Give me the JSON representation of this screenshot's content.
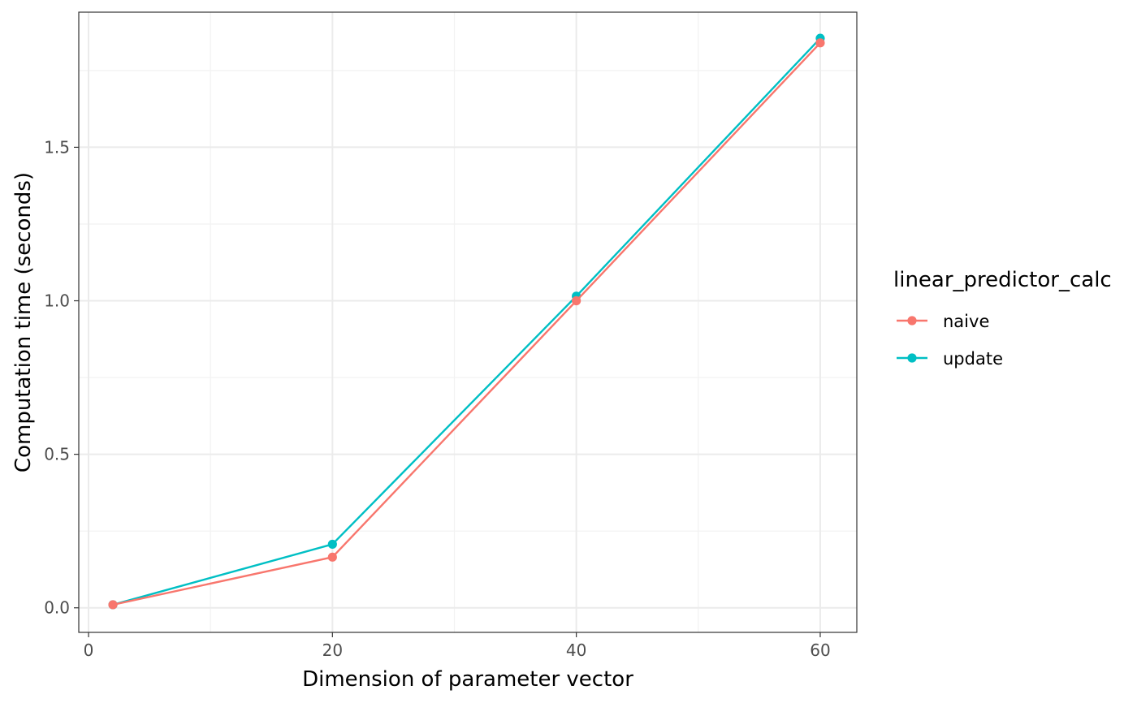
{
  "chart_data": {
    "type": "line",
    "xlabel": "Dimension of parameter vector",
    "ylabel": "Computation time (seconds)",
    "xlim": [
      -0.8,
      63.0
    ],
    "ylim": [
      -0.08,
      1.94
    ],
    "x_ticks": [
      0,
      20,
      40,
      60
    ],
    "x_tick_labels": [
      "0",
      "20",
      "40",
      "60"
    ],
    "y_ticks": [
      0.0,
      0.5,
      1.0,
      1.5
    ],
    "y_tick_labels": [
      "0.0",
      "0.5",
      "1.0",
      "1.5"
    ],
    "grid": true,
    "legend": {
      "title": "linear_predictor_calc",
      "placement": "right"
    },
    "series": [
      {
        "name": "update",
        "color": "#00BFC4",
        "x": [
          2,
          20,
          40,
          60
        ],
        "y": [
          0.01,
          0.207,
          1.015,
          1.855
        ]
      },
      {
        "name": "naive",
        "color": "#F8766D",
        "x": [
          2,
          20,
          40,
          60
        ],
        "y": [
          0.01,
          0.165,
          1.0,
          1.84
        ]
      }
    ],
    "legend_order": [
      "naive",
      "update"
    ]
  }
}
